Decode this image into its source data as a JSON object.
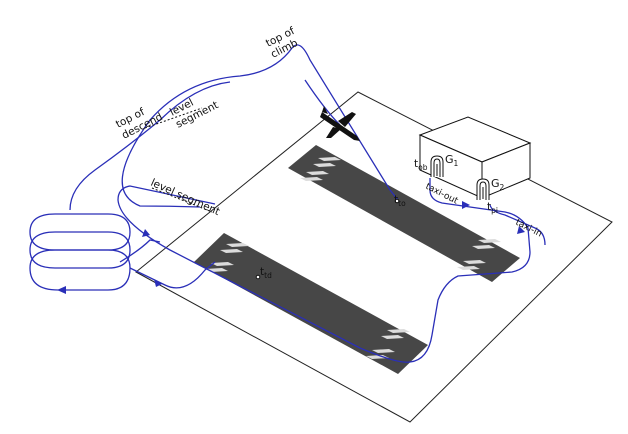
{
  "labels": {
    "top_of_climb": [
      "top of",
      "climb"
    ],
    "top_of_descend": [
      "top of",
      "descend"
    ],
    "level_segment_upper": [
      "level",
      "segment"
    ],
    "level_segment_lower": "level segment",
    "taxi_out": "taxi-out",
    "taxi_in": "taxi-in"
  },
  "gates": [
    {
      "letter": "G",
      "sub": "1"
    },
    {
      "letter": "G",
      "sub": "2"
    }
  ],
  "times": {
    "t_ob": {
      "t": "t",
      "sub": "ob"
    },
    "t_pi": {
      "t": "t",
      "sub": "pi"
    },
    "t_to": {
      "t": "t",
      "sub": "to"
    },
    "t_td": {
      "t": "t",
      "sub": "td"
    }
  },
  "colors": {
    "trajectory": "#2a2fb8",
    "runway": "#444444",
    "ground_outline": "#222222",
    "runway_marking": "#dddddd"
  }
}
